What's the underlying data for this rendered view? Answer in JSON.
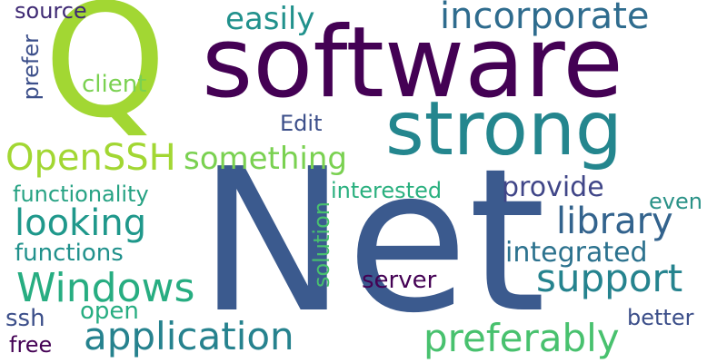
{
  "words": {
    "net": {
      "text": "Net",
      "color": "#3b5a8e"
    },
    "software": {
      "text": "software",
      "color": "#440154"
    },
    "strong": {
      "text": "strong",
      "color": "#24868e"
    },
    "q": {
      "text": "Q",
      "color": "#a2d733"
    },
    "incorporate": {
      "text": "incorporate",
      "color": "#2f6c8e"
    },
    "easily": {
      "text": "easily",
      "color": "#21918c"
    },
    "source": {
      "text": "source",
      "color": "#3f2a74"
    },
    "prefer": {
      "text": "prefer",
      "color": "#3c4f8a"
    },
    "client": {
      "text": "client",
      "color": "#7ad151"
    },
    "edit": {
      "text": "Edit",
      "color": "#3c4f8a"
    },
    "openssh": {
      "text": "OpenSSH",
      "color": "#a2d733"
    },
    "something": {
      "text": "something",
      "color": "#7ad151"
    },
    "functionality": {
      "text": "functionality",
      "color": "#26a283"
    },
    "interested": {
      "text": "interested",
      "color": "#2ab07f"
    },
    "provide": {
      "text": "provide",
      "color": "#404688"
    },
    "even": {
      "text": "even",
      "color": "#2a9287"
    },
    "looking": {
      "text": "looking",
      "color": "#1f988b"
    },
    "solution": {
      "text": "solution",
      "color": "#48c16e"
    },
    "library": {
      "text": "library",
      "color": "#33638d"
    },
    "functions": {
      "text": "functions",
      "color": "#21918c"
    },
    "integrated": {
      "text": "integrated",
      "color": "#2c728e"
    },
    "windows": {
      "text": "Windows",
      "color": "#27ad81"
    },
    "support": {
      "text": "support",
      "color": "#25838e"
    },
    "server": {
      "text": "server",
      "color": "#440154"
    },
    "open": {
      "text": "open",
      "color": "#27ad81"
    },
    "ssh": {
      "text": "ssh",
      "color": "#3c4f8a"
    },
    "application": {
      "text": "application",
      "color": "#26828e"
    },
    "better": {
      "text": "better",
      "color": "#3c4f8a"
    },
    "preferably": {
      "text": "preferably",
      "color": "#48c16e"
    },
    "free": {
      "text": "free",
      "color": "#440154"
    }
  }
}
